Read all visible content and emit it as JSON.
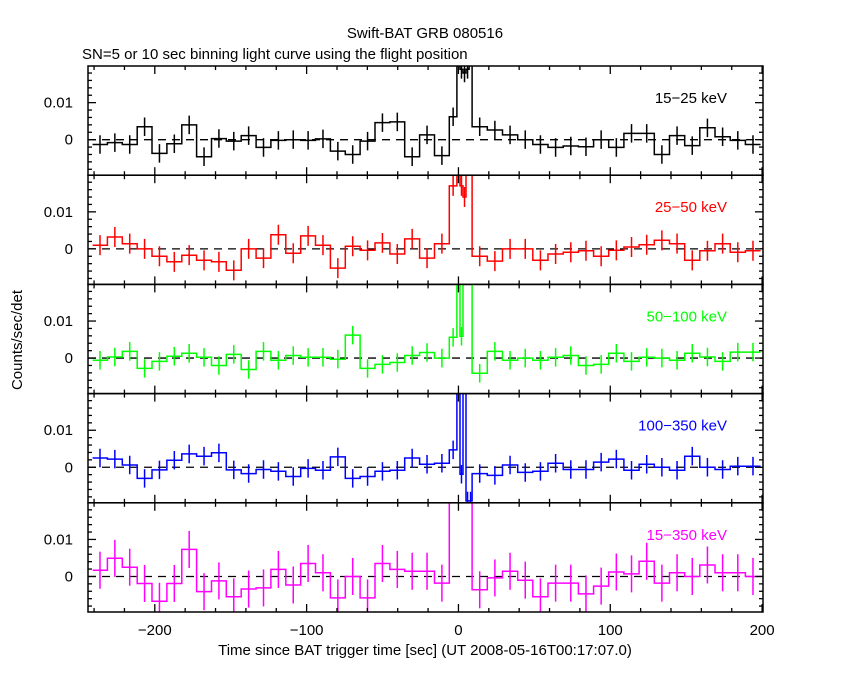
{
  "chart_data": {
    "type": "line",
    "title": "Swift-BAT GRB 080516",
    "subtitle": "SN=5 or 10 sec binning light curve using the flight position",
    "xlabel": "Time since BAT trigger time [sec] (UT 2008-05-16T00:17:07.0)",
    "ylabel": "Counts/sec/det",
    "xlim": [
      -244,
      200.6
    ],
    "ylim": [
      -0.0096,
      0.0199
    ],
    "x_ticks": [
      -200,
      -100,
      0,
      100,
      200
    ],
    "x_tick_labels": [
      "−200",
      "−100",
      "0",
      "100",
      "200"
    ],
    "y_ticks": [
      0,
      0.01
    ],
    "y_tick_labels": [
      "0",
      "0.01"
    ],
    "zero_line": "dashed",
    "grid": false,
    "burst_bin_edges": [
      -6,
      -1,
      1,
      3,
      5,
      7,
      9
    ],
    "panels": [
      {
        "name": "15−25 keV",
        "color": "#000000",
        "err": 0.0025,
        "pre": {
          "start": -241,
          "end": -6,
          "values": [
            -0.0013,
            -0.0008,
            -0.0013,
            0.0035,
            -0.0037,
            -0.0011,
            0.004,
            -0.0046,
            0.0003,
            -0.0004,
            0.0011,
            -0.0021,
            -0.0002,
            0,
            -0.0002,
            0.0002,
            -0.0031,
            -0.004,
            -0.0004,
            0.0046,
            0.0048,
            -0.0046,
            0.0013,
            -0.0043
          ]
        },
        "burst": [
          0.0062,
          0.03,
          0.019,
          0.018,
          0.019,
          0.03
        ],
        "post": {
          "start": 9,
          "end": 199,
          "values": [
            0.0035,
            0.0026,
            0.0013,
            0,
            -0.0013,
            -0.0021,
            -0.0017,
            -0.0019,
            0,
            -0.0021,
            0.0017,
            0.0017,
            -0.004,
            0.0011,
            -0.0016,
            0.0032,
            0.0008,
            -0.0002,
            -0.0013
          ]
        }
      },
      {
        "name": "25−50 keV",
        "color": "#ff0000",
        "err": 0.0027,
        "pre": {
          "start": -241,
          "end": -6,
          "values": [
            0.001,
            0.0032,
            0.0014,
            0,
            -0.002,
            -0.0035,
            -0.0017,
            -0.0031,
            -0.0035,
            -0.0058,
            0,
            -0.0025,
            0.0038,
            -0.0012,
            0.0035,
            0.001,
            -0.0052,
            0.0007,
            -0.0004,
            0.0016,
            -0.0014,
            0.0027,
            -0.0025,
            0.0014
          ]
        },
        "burst": [
          0.017,
          0.03,
          0.017,
          0.014,
          0.03,
          0.03
        ],
        "post": {
          "start": 9,
          "end": 199,
          "values": [
            -0.002,
            -0.0033,
            0,
            0,
            -0.0031,
            -0.0014,
            -0.0009,
            -0.0005,
            -0.002,
            -0.0004,
            0.0005,
            0.0011,
            0.0023,
            0.0014,
            -0.0031,
            -0.0005,
            0.0014,
            -0.0009,
            -0.0005
          ]
        }
      },
      {
        "name": "50−100 keV",
        "color": "#00ff00",
        "err": 0.0025,
        "pre": {
          "start": -241,
          "end": -6,
          "values": [
            -0.0006,
            0.0003,
            0.0018,
            -0.0028,
            -0.0009,
            0.0005,
            0.0013,
            0.0002,
            -0.002,
            0.001,
            -0.0031,
            0.0018,
            -0.0006,
            0.0007,
            0.0002,
            0.0002,
            -0.0003,
            0.0062,
            -0.0028,
            -0.0017,
            -0.0012,
            0.0007,
            0.0015,
            0
          ]
        },
        "burst": [
          0.0056,
          0.03,
          0.0059,
          0.03,
          0.03,
          0.03
        ],
        "post": {
          "start": 9,
          "end": 199,
          "values": [
            -0.0041,
            0.0018,
            -0.0006,
            0,
            -0.0006,
            0.0002,
            0.0007,
            -0.002,
            -0.0017,
            0.0013,
            -0.0009,
            0.0002,
            0,
            -0.0006,
            0.0013,
            0.0003,
            -0.0009,
            0.0016,
            0.0016
          ]
        }
      },
      {
        "name": "100−350 keV",
        "color": "#0000ff",
        "err": 0.0025,
        "pre": {
          "start": -241,
          "end": -6,
          "values": [
            0.0025,
            0.0022,
            0.0006,
            -0.003,
            -0.0007,
            0.0019,
            0.0036,
            0.003,
            0.0039,
            -0.0007,
            -0.0017,
            -0.0006,
            -0.0011,
            -0.0025,
            -0.0003,
            -0.0008,
            0.0028,
            -0.003,
            -0.0025,
            -0.0011,
            -0.0008,
            0.0025,
            0.0008,
            0.0011
          ]
        },
        "burst": [
          0.0047,
          0.03,
          -0.0019,
          0.03,
          -0.0091,
          -0.0091
        ],
        "post": {
          "start": 9,
          "end": 199,
          "values": [
            -0.0017,
            -0.0022,
            0.0006,
            -0.0014,
            -0.0011,
            0.0011,
            -0.0006,
            -0.0006,
            0.0014,
            0.0022,
            -0.0008,
            0.0008,
            0,
            -0.0008,
            0.003,
            0,
            -0.0006,
            0.0003,
            0.0003
          ]
        }
      },
      {
        "name": "15−350 keV",
        "color": "#ff00ff",
        "err": 0.005,
        "pre": {
          "start": -241,
          "end": -6,
          "values": [
            0.0017,
            0.0049,
            0.0025,
            -0.0019,
            -0.0067,
            -0.0019,
            0.0073,
            -0.0041,
            -0.0012,
            -0.0055,
            -0.0034,
            -0.0031,
            0.0019,
            -0.0023,
            0.0035,
            0.001,
            -0.0058,
            0,
            -0.0058,
            0.0035,
            0.0019,
            0.0014,
            0.0014,
            -0.0018
          ]
        },
        "burst": [
          0.03,
          0.03,
          0.03,
          0.03,
          0.03,
          0.03
        ],
        "post": {
          "start": 9,
          "end": 199,
          "values": [
            -0.0036,
            -0.0004,
            0.0014,
            -0.001,
            -0.0055,
            -0.0018,
            -0.0018,
            -0.0047,
            -0.0026,
            0.0012,
            0.0007,
            0.0041,
            -0.0018,
            0.001,
            0,
            0.0031,
            0.001,
            0.001,
            0
          ]
        }
      }
    ]
  }
}
